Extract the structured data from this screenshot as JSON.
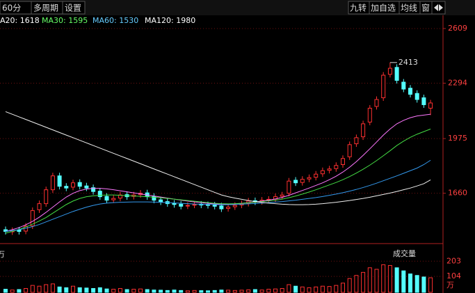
{
  "chart_data": {
    "type": "candlestick",
    "toolbar_left": [
      "60分",
      "多周期",
      "设置"
    ],
    "toolbar_right": [
      "九转",
      "加自选",
      "均线",
      "窗"
    ],
    "legend": [
      {
        "text": "A20: 1618",
        "color": "#ffffff"
      },
      {
        "text": "MA30: 1595",
        "color": "#66ff66"
      },
      {
        "text": "MA60: 1530",
        "color": "#66ccff"
      },
      {
        "text": "MA120: 1980",
        "color": "#ffffff"
      }
    ],
    "up_color": "#ff3030",
    "down_color": "#54ffff",
    "ohlc": {
      "open": [
        1450,
        1438,
        1448,
        1442,
        1472,
        1565,
        1600,
        1680,
        1760,
        1700,
        1695,
        1722,
        1702,
        1692,
        1672,
        1642,
        1622,
        1632,
        1652,
        1642,
        1652,
        1662,
        1642,
        1622,
        1612,
        1602,
        1597,
        1587,
        1592,
        1597,
        1594,
        1592,
        1587,
        1572,
        1582,
        1592,
        1602,
        1617,
        1612,
        1622,
        1627,
        1642,
        1660,
        1735,
        1722,
        1742,
        1752,
        1772,
        1792,
        1802,
        1825,
        1870,
        1945,
        1985,
        2070,
        2160,
        2210,
        2345,
        2385,
        2300,
        2265,
        2235,
        2210,
        2150
      ],
      "high": [
        1468,
        1463,
        1466,
        1488,
        1578,
        1618,
        1698,
        1778,
        1778,
        1718,
        1738,
        1740,
        1720,
        1710,
        1690,
        1660,
        1648,
        1668,
        1670,
        1668,
        1678,
        1680,
        1660,
        1640,
        1630,
        1620,
        1615,
        1608,
        1613,
        1615,
        1612,
        1610,
        1605,
        1598,
        1608,
        1618,
        1633,
        1635,
        1638,
        1643,
        1658,
        1668,
        1748,
        1753,
        1758,
        1768,
        1788,
        1808,
        1818,
        1838,
        1878,
        1958,
        1998,
        2078,
        2168,
        2218,
        2358,
        2413,
        2403,
        2318,
        2283,
        2253,
        2228,
        2198
      ],
      "low": [
        1422,
        1420,
        1422,
        1424,
        1454,
        1547,
        1582,
        1662,
        1682,
        1672,
        1677,
        1682,
        1672,
        1652,
        1622,
        1602,
        1604,
        1614,
        1622,
        1624,
        1634,
        1622,
        1602,
        1592,
        1582,
        1577,
        1567,
        1569,
        1574,
        1574,
        1572,
        1567,
        1552,
        1554,
        1564,
        1574,
        1584,
        1592,
        1594,
        1604,
        1609,
        1624,
        1642,
        1702,
        1704,
        1724,
        1734,
        1754,
        1774,
        1784,
        1807,
        1852,
        1927,
        1967,
        2052,
        2142,
        2192,
        2327,
        2292,
        2242,
        2212,
        2182,
        2152,
        2110
      ],
      "close": [
        1440,
        1445,
        1440,
        1470,
        1560,
        1600,
        1680,
        1760,
        1700,
        1690,
        1720,
        1700,
        1690,
        1670,
        1640,
        1620,
        1630,
        1650,
        1640,
        1650,
        1660,
        1640,
        1620,
        1610,
        1600,
        1595,
        1585,
        1590,
        1595,
        1592,
        1590,
        1585,
        1570,
        1580,
        1590,
        1600,
        1615,
        1610,
        1620,
        1625,
        1640,
        1650,
        1730,
        1720,
        1740,
        1750,
        1770,
        1790,
        1800,
        1820,
        1860,
        1940,
        1980,
        2060,
        2150,
        2200,
        2340,
        2380,
        2310,
        2260,
        2230,
        2200,
        2170,
        2180
      ]
    },
    "ma": [
      {
        "color": "#ff77ff",
        "values": [
          1440,
          1450,
          1462,
          1478,
          1498,
          1522,
          1550,
          1580,
          1610,
          1638,
          1660,
          1675,
          1684,
          1688,
          1688,
          1685,
          1680,
          1674,
          1668,
          1662,
          1656,
          1650,
          1644,
          1638,
          1632,
          1626,
          1620,
          1615,
          1610,
          1606,
          1602,
          1599,
          1597,
          1597,
          1599,
          1602,
          1606,
          1610,
          1615,
          1620,
          1627,
          1636,
          1648,
          1662,
          1676,
          1690,
          1705,
          1720,
          1738,
          1758,
          1782,
          1810,
          1842,
          1878,
          1916,
          1955,
          1995,
          2030,
          2060,
          2080,
          2095,
          2105,
          2110,
          2115
        ]
      },
      {
        "color": "#44dd44",
        "values": [
          1430,
          1440,
          1452,
          1466,
          1482,
          1500,
          1520,
          1545,
          1570,
          1595,
          1615,
          1630,
          1640,
          1645,
          1648,
          1650,
          1650,
          1648,
          1646,
          1644,
          1642,
          1640,
          1637,
          1634,
          1630,
          1626,
          1622,
          1618,
          1614,
          1610,
          1606,
          1602,
          1600,
          1599,
          1600,
          1602,
          1605,
          1608,
          1612,
          1616,
          1620,
          1626,
          1634,
          1644,
          1655,
          1667,
          1680,
          1694,
          1708,
          1722,
          1738,
          1756,
          1776,
          1798,
          1822,
          1848,
          1876,
          1905,
          1935,
          1960,
          1982,
          2000,
          2015,
          2030
        ]
      },
      {
        "color": "#3399ee",
        "values": [
          1440,
          1445,
          1450,
          1458,
          1468,
          1480,
          1495,
          1510,
          1525,
          1540,
          1555,
          1568,
          1580,
          1590,
          1598,
          1603,
          1606,
          1608,
          1609,
          1610,
          1610,
          1610,
          1609,
          1608,
          1606,
          1604,
          1602,
          1600,
          1598,
          1597,
          1596,
          1595,
          1594,
          1594,
          1595,
          1597,
          1599,
          1601,
          1603,
          1606,
          1609,
          1612,
          1616,
          1620,
          1625,
          1630,
          1635,
          1641,
          1648,
          1655,
          1663,
          1672,
          1682,
          1693,
          1705,
          1718,
          1732,
          1746,
          1760,
          1775,
          1790,
          1805,
          1825,
          1850
        ]
      },
      {
        "color": "#f0f0f0",
        "values": [
          2130,
          2115,
          2100,
          2085,
          2070,
          2055,
          2040,
          2025,
          2010,
          1995,
          1980,
          1965,
          1950,
          1935,
          1920,
          1905,
          1890,
          1875,
          1860,
          1845,
          1830,
          1815,
          1800,
          1785,
          1770,
          1755,
          1740,
          1725,
          1710,
          1695,
          1680,
          1665,
          1650,
          1640,
          1632,
          1625,
          1618,
          1612,
          1607,
          1603,
          1600,
          1597,
          1595,
          1594,
          1594,
          1595,
          1597,
          1600,
          1604,
          1608,
          1613,
          1618,
          1624,
          1630,
          1637,
          1645,
          1653,
          1661,
          1670,
          1680,
          1690,
          1702,
          1715,
          1737
        ]
      }
    ],
    "annotation": "2413",
    "ylim": [
      1390,
      2685
    ],
    "yticks": [
      1660,
      1975,
      2294,
      2609
    ],
    "grid": true,
    "volume": {
      "label": "成交量",
      "unit": "万",
      "values": [
        20,
        15,
        18,
        25,
        45,
        40,
        50,
        55,
        35,
        30,
        40,
        30,
        28,
        25,
        30,
        22,
        20,
        25,
        18,
        20,
        22,
        18,
        15,
        14,
        12,
        15,
        12,
        10,
        12,
        11,
        10,
        12,
        15,
        14,
        12,
        14,
        16,
        18,
        15,
        20,
        22,
        25,
        50,
        40,
        35,
        30,
        35,
        40,
        38,
        45,
        60,
        90,
        110,
        130,
        160,
        150,
        180,
        175,
        160,
        140,
        120,
        110,
        100,
        95
      ],
      "ylim": [
        0,
        295
      ],
      "yticks": [
        104,
        203
      ]
    }
  }
}
